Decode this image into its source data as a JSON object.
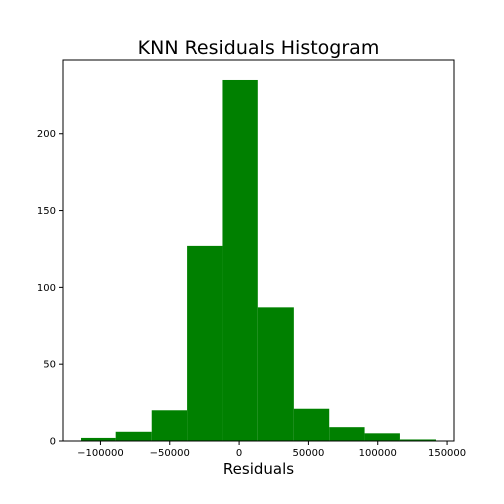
{
  "chart_data": {
    "type": "bar",
    "title": "KNN Residuals Histogram",
    "xlabel": "Residuals",
    "ylabel": "",
    "bar_color": "#008000",
    "bins": [
      {
        "start": -114000,
        "end": -89000,
        "count": 2
      },
      {
        "start": -89000,
        "end": -63000,
        "count": 6
      },
      {
        "start": -63000,
        "end": -37500,
        "count": 20
      },
      {
        "start": -37500,
        "end": -12000,
        "count": 127
      },
      {
        "start": -12000,
        "end": 13500,
        "count": 235
      },
      {
        "start": 13500,
        "end": 39500,
        "count": 87
      },
      {
        "start": 39500,
        "end": 65000,
        "count": 21
      },
      {
        "start": 65000,
        "end": 90500,
        "count": 9
      },
      {
        "start": 90500,
        "end": 116000,
        "count": 5
      },
      {
        "start": 116000,
        "end": 142000,
        "count": 1
      }
    ],
    "xlim": [
      -127000,
      155000
    ],
    "ylim": [
      0,
      248
    ],
    "xticks": [
      -100000,
      -50000,
      0,
      50000,
      100000,
      150000
    ],
    "xtick_labels": [
      "−100000",
      "−50000",
      "0",
      "50000",
      "100000",
      "150000"
    ],
    "yticks": [
      0,
      50,
      100,
      150,
      200
    ],
    "ytick_labels": [
      "0",
      "50",
      "100",
      "150",
      "200"
    ],
    "grid": false,
    "legend": "none"
  }
}
